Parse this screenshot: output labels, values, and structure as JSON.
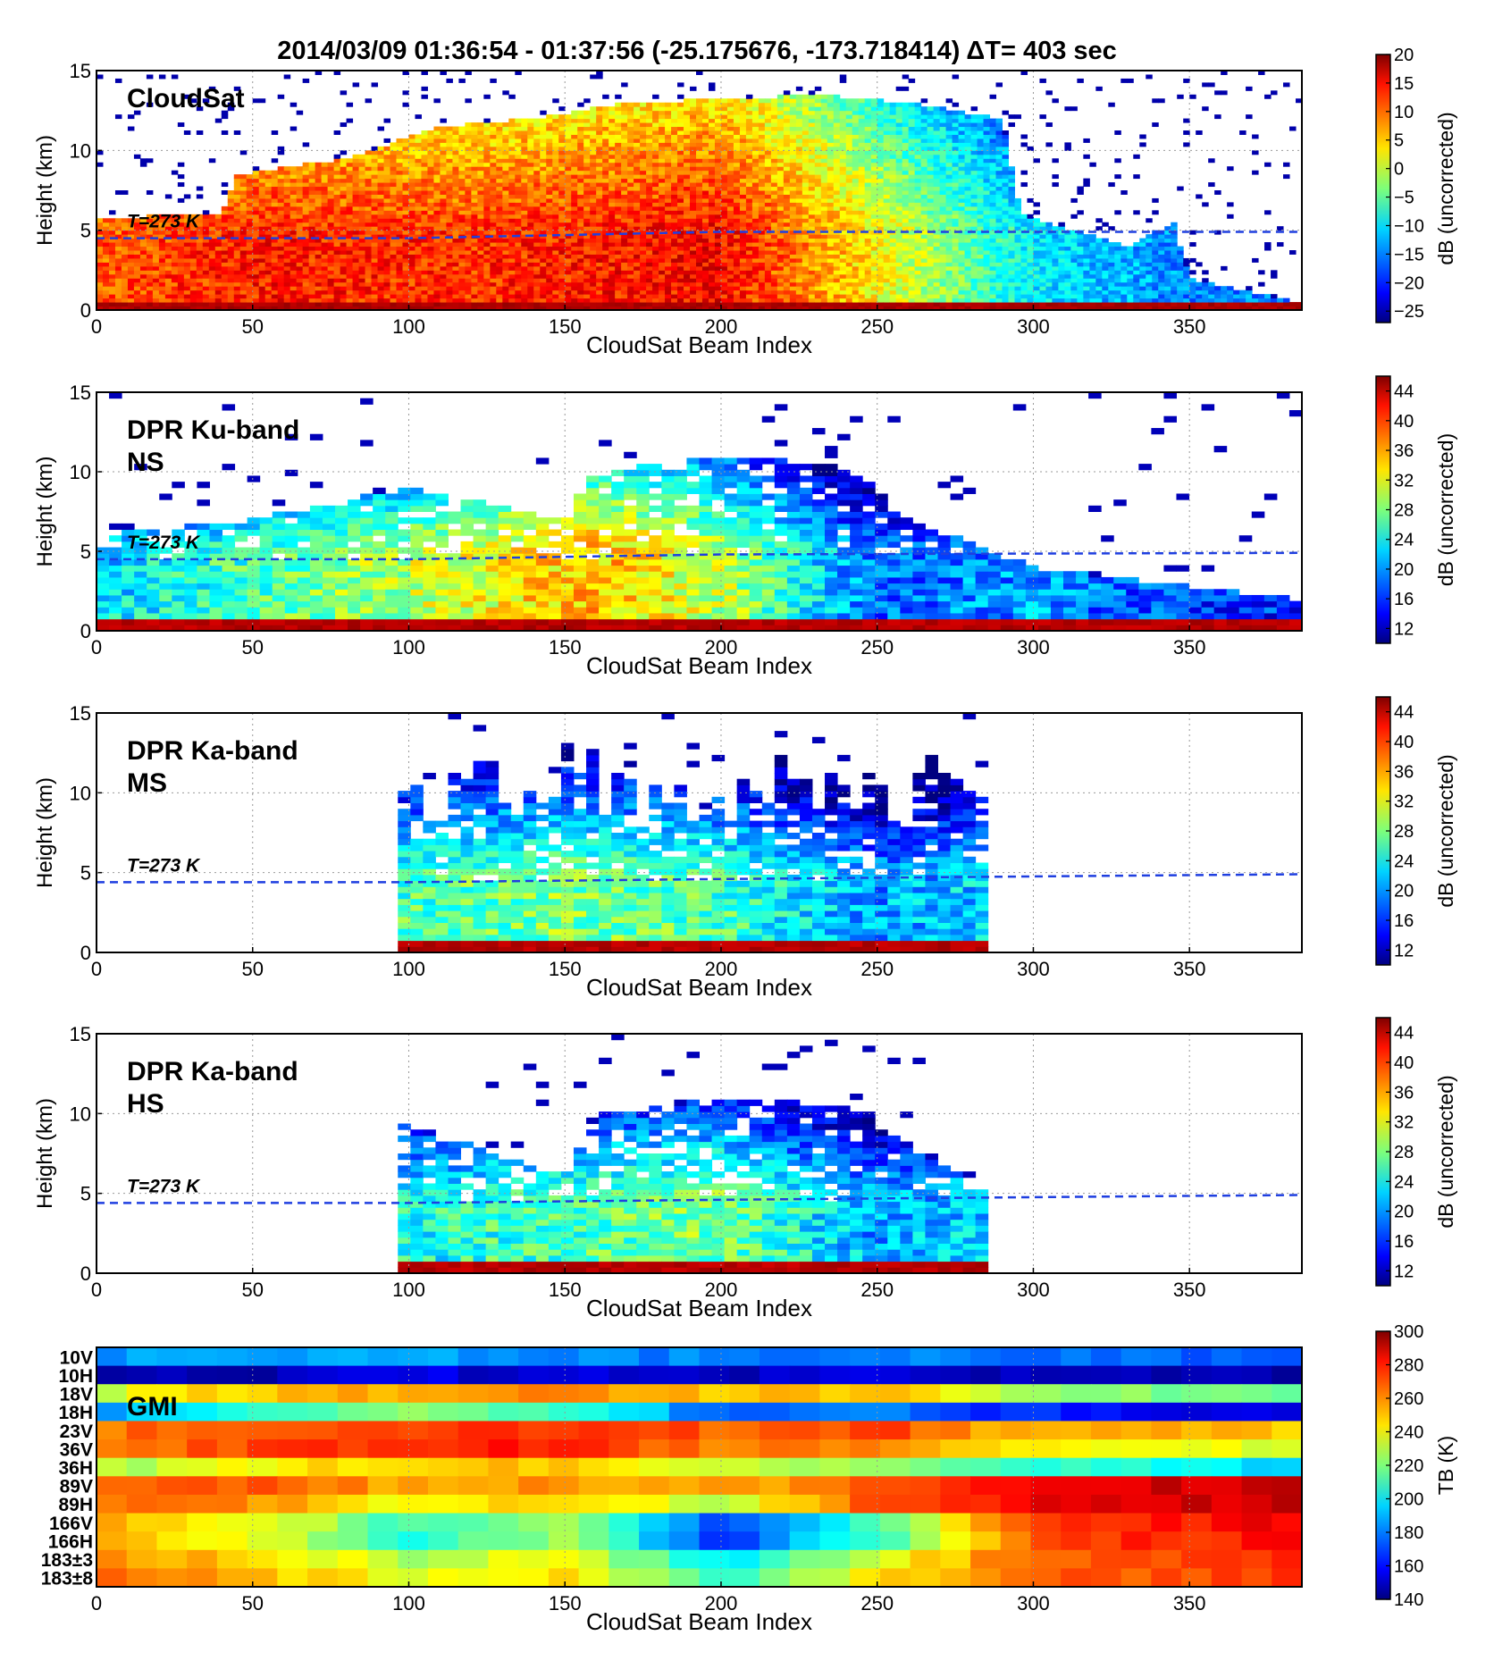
{
  "figure": {
    "title": "2014/03/09 01:36:54 - 01:37:56   (-25.175676, -173.718414)  ΔT= 403 sec"
  },
  "chart_data": [
    {
      "type": "heatmap",
      "panel": "CloudSat",
      "label": "CloudSat",
      "xlabel": "CloudSat Beam Index",
      "ylabel": "Height (km)",
      "xlim": [
        0,
        386
      ],
      "ylim": [
        0,
        15
      ],
      "xticks": [
        0,
        50,
        100,
        150,
        200,
        250,
        300,
        350
      ],
      "yticks": [
        0,
        5,
        10,
        15
      ],
      "grid": true,
      "colorbar": {
        "label": "dB (uncorrected)",
        "range": [
          -27,
          20
        ],
        "ticks": [
          -25,
          -20,
          -15,
          -10,
          -5,
          0,
          5,
          10,
          15,
          20
        ]
      },
      "annotation": "T=273 K",
      "freezing_level_km": [
        [
          0,
          4.5
        ],
        [
          100,
          4.5
        ],
        [
          200,
          4.9
        ],
        [
          386,
          4.9
        ]
      ],
      "cloud_tops_km": [
        [
          0,
          5.8
        ],
        [
          40,
          6.0
        ],
        [
          45,
          8.5
        ],
        [
          80,
          9.5
        ],
        [
          110,
          11.5
        ],
        [
          140,
          12.0
        ],
        [
          170,
          13.0
        ],
        [
          200,
          13.2
        ],
        [
          230,
          13.5
        ],
        [
          260,
          13.0
        ],
        [
          290,
          12.0
        ],
        [
          296,
          6.0
        ],
        [
          330,
          4.0
        ],
        [
          345,
          5.5
        ],
        [
          350,
          2.0
        ],
        [
          386,
          0.5
        ]
      ],
      "typical_reflectivity": [
        [
          0,
          10
        ],
        [
          50,
          13
        ],
        [
          120,
          12
        ],
        [
          200,
          14
        ],
        [
          240,
          5
        ],
        [
          300,
          -10
        ],
        [
          350,
          -15
        ]
      ]
    },
    {
      "type": "heatmap",
      "panel": "DPR Ku-band NS",
      "label": "DPR Ku-band\nNS",
      "xlabel": "CloudSat Beam Index",
      "ylabel": "Height (km)",
      "xlim": [
        0,
        386
      ],
      "ylim": [
        0,
        15
      ],
      "xticks": [
        0,
        50,
        100,
        150,
        200,
        250,
        300,
        350
      ],
      "yticks": [
        0,
        5,
        10,
        15
      ],
      "grid": true,
      "colorbar": {
        "label": "dB (uncorrected)",
        "range": [
          10,
          46
        ],
        "ticks": [
          12,
          16,
          20,
          24,
          28,
          32,
          36,
          40,
          44
        ]
      },
      "annotation": "T=273 K",
      "freezing_level_km": [
        [
          0,
          4.5
        ],
        [
          100,
          4.5
        ],
        [
          200,
          4.8
        ],
        [
          386,
          4.9
        ]
      ],
      "echo_tops_km": [
        [
          0,
          6.0
        ],
        [
          50,
          7.0
        ],
        [
          100,
          9.0
        ],
        [
          150,
          7.0
        ],
        [
          160,
          10.0
        ],
        [
          200,
          11.0
        ],
        [
          240,
          10.5
        ],
        [
          260,
          7.0
        ],
        [
          300,
          4.0
        ],
        [
          386,
          2.0
        ]
      ],
      "typical_reflectivity": [
        [
          0,
          22
        ],
        [
          50,
          26
        ],
        [
          100,
          30
        ],
        [
          160,
          35
        ],
        [
          200,
          30
        ],
        [
          250,
          18
        ],
        [
          300,
          20
        ],
        [
          350,
          16
        ]
      ]
    },
    {
      "type": "heatmap",
      "panel": "DPR Ka-band MS",
      "label": "DPR Ka-band\nMS",
      "xlabel": "CloudSat Beam Index",
      "ylabel": "Height (km)",
      "xlim": [
        0,
        386
      ],
      "ylim": [
        0,
        15
      ],
      "xticks": [
        0,
        50,
        100,
        150,
        200,
        250,
        300,
        350
      ],
      "yticks": [
        0,
        5,
        10,
        15
      ],
      "grid": true,
      "colorbar": {
        "label": "dB (uncorrected)",
        "range": [
          10,
          46
        ],
        "ticks": [
          12,
          16,
          20,
          24,
          28,
          32,
          36,
          40,
          44
        ]
      },
      "annotation": "T=273 K",
      "swath_range": [
        98,
        286
      ],
      "freezing_level_km": [
        [
          0,
          4.4
        ],
        [
          100,
          4.4
        ],
        [
          200,
          4.6
        ],
        [
          386,
          4.9
        ]
      ],
      "typical_reflectivity": [
        [
          100,
          26
        ],
        [
          150,
          28
        ],
        [
          200,
          26
        ],
        [
          250,
          20
        ],
        [
          285,
          22
        ]
      ]
    },
    {
      "type": "heatmap",
      "panel": "DPR Ka-band HS",
      "label": "DPR Ka-band\nHS",
      "xlabel": "CloudSat Beam Index",
      "ylabel": "Height (km)",
      "xlim": [
        0,
        386
      ],
      "ylim": [
        0,
        15
      ],
      "xticks": [
        0,
        50,
        100,
        150,
        200,
        250,
        300,
        350
      ],
      "yticks": [
        0,
        5,
        10,
        15
      ],
      "grid": true,
      "colorbar": {
        "label": "dB (uncorrected)",
        "range": [
          10,
          46
        ],
        "ticks": [
          12,
          16,
          20,
          24,
          28,
          32,
          36,
          40,
          44
        ]
      },
      "annotation": "T=273 K",
      "swath_range": [
        98,
        286
      ],
      "freezing_level_km": [
        [
          0,
          4.4
        ],
        [
          100,
          4.4
        ],
        [
          200,
          4.6
        ],
        [
          386,
          4.9
        ]
      ],
      "echo_tops_km": [
        [
          98,
          9.5
        ],
        [
          120,
          8.0
        ],
        [
          150,
          6.0
        ],
        [
          160,
          10.0
        ],
        [
          200,
          11.0
        ],
        [
          240,
          10.5
        ],
        [
          260,
          8.0
        ],
        [
          286,
          5.0
        ]
      ],
      "typical_reflectivity": [
        [
          100,
          24
        ],
        [
          150,
          26
        ],
        [
          200,
          28
        ],
        [
          250,
          20
        ],
        [
          285,
          22
        ]
      ]
    },
    {
      "type": "heatmap",
      "panel": "GMI",
      "label": "GMI",
      "xlabel": "CloudSat Beam Index",
      "xlim": [
        0,
        386
      ],
      "xticks": [
        0,
        50,
        100,
        150,
        200,
        250,
        300,
        350
      ],
      "grid": true,
      "colorbar": {
        "label": "TB (K)",
        "range": [
          140,
          300
        ],
        "ticks": [
          140,
          160,
          180,
          200,
          220,
          240,
          260,
          280,
          300
        ]
      },
      "channels": [
        "10V",
        "10H",
        "18V",
        "18H",
        "23V",
        "36V",
        "36H",
        "89V",
        "89H",
        "166V",
        "166H",
        "183±3",
        "183±8"
      ],
      "x": [
        0,
        50,
        100,
        150,
        200,
        250,
        300,
        350,
        386
      ],
      "tb_k": [
        [
          185,
          188,
          185,
          182,
          180,
          180,
          176,
          176,
          178
        ],
        [
          145,
          148,
          155,
          152,
          150,
          152,
          148,
          145,
          148
        ],
        [
          232,
          250,
          255,
          258,
          248,
          252,
          225,
          218,
          215
        ],
        [
          182,
          212,
          220,
          212,
          175,
          178,
          165,
          158,
          155
        ],
        [
          262,
          268,
          272,
          274,
          265,
          270,
          250,
          252,
          248
        ],
        [
          262,
          268,
          274,
          276,
          260,
          262,
          240,
          238,
          235
        ],
        [
          225,
          240,
          248,
          250,
          228,
          228,
          208,
          200,
          195
        ],
        [
          265,
          268,
          252,
          258,
          252,
          268,
          282,
          288,
          290
        ],
        [
          262,
          258,
          238,
          250,
          230,
          268,
          282,
          286,
          290
        ],
        [
          255,
          240,
          210,
          230,
          170,
          212,
          272,
          276,
          282
        ],
        [
          254,
          238,
          205,
          225,
          168,
          208,
          270,
          274,
          280
        ],
        [
          258,
          248,
          228,
          240,
          195,
          235,
          265,
          268,
          272
        ],
        [
          262,
          252,
          236,
          245,
          205,
          242,
          266,
          268,
          272
        ]
      ]
    }
  ]
}
